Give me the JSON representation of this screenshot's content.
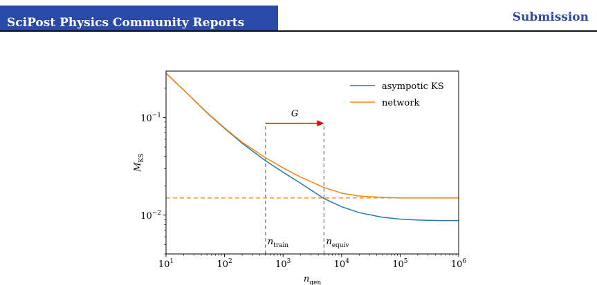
{
  "header": {
    "title": "SciPost Physics Community Reports",
    "section": "Submission"
  },
  "chart_data": {
    "type": "line",
    "xlabel": "n_gen",
    "ylabel": "M_KS",
    "x_scale": "log",
    "y_scale": "log",
    "xlim": [
      10,
      1000000
    ],
    "ylim": [
      0.004,
      0.3
    ],
    "x_ticks": [
      {
        "value": 10,
        "base": "10",
        "exp": "1"
      },
      {
        "value": 100,
        "base": "10",
        "exp": "2"
      },
      {
        "value": 1000,
        "base": "10",
        "exp": "3"
      },
      {
        "value": 10000,
        "base": "10",
        "exp": "4"
      },
      {
        "value": 100000,
        "base": "10",
        "exp": "5"
      },
      {
        "value": 1000000,
        "base": "10",
        "exp": "6"
      }
    ],
    "y_ticks": [
      {
        "value": 0.01,
        "base": "10",
        "exp": "−2"
      },
      {
        "value": 0.1,
        "base": "10",
        "exp": "−1"
      }
    ],
    "legend": {
      "placement": "top-right"
    },
    "series": [
      {
        "name": "asympotic KS",
        "color": "#1f77b4",
        "x": [
          10,
          20,
          50,
          100,
          200,
          500,
          1000,
          2000,
          5000,
          10000,
          20000,
          50000,
          100000,
          200000,
          500000,
          1000000
        ],
        "y": [
          0.285,
          0.192,
          0.112,
          0.0775,
          0.0545,
          0.0362,
          0.0275,
          0.0212,
          0.0148,
          0.0122,
          0.0106,
          0.0095,
          0.0091,
          0.0089,
          0.0088,
          0.0088
        ]
      },
      {
        "name": "network",
        "color": "#ff7f0e",
        "x": [
          10,
          20,
          50,
          100,
          200,
          500,
          1000,
          2000,
          5000,
          10000,
          20000,
          50000,
          100000,
          200000,
          500000,
          1000000
        ],
        "y": [
          0.285,
          0.192,
          0.113,
          0.0785,
          0.0558,
          0.0388,
          0.0305,
          0.0245,
          0.0192,
          0.0168,
          0.0157,
          0.0152,
          0.015,
          0.015,
          0.015,
          0.015
        ]
      }
    ],
    "reference_lines": [
      {
        "orientation": "horizontal",
        "value": 0.015,
        "color": "#ff7f0e",
        "style": "dashed"
      },
      {
        "orientation": "vertical",
        "value": 500,
        "color": "#777777",
        "style": "dashed",
        "label_base": "n",
        "label_sub": "train",
        "y_from": 0.004,
        "y_to": 0.0875
      },
      {
        "orientation": "vertical",
        "value": 5000,
        "color": "#777777",
        "style": "dashed",
        "label_base": "n",
        "label_sub": "equiv",
        "y_from": 0.004,
        "y_to": 0.0875
      }
    ],
    "arrow": {
      "label": "G",
      "x_from": 500,
      "x_to": 5000,
      "y": 0.0875,
      "color": "#e00000"
    }
  }
}
